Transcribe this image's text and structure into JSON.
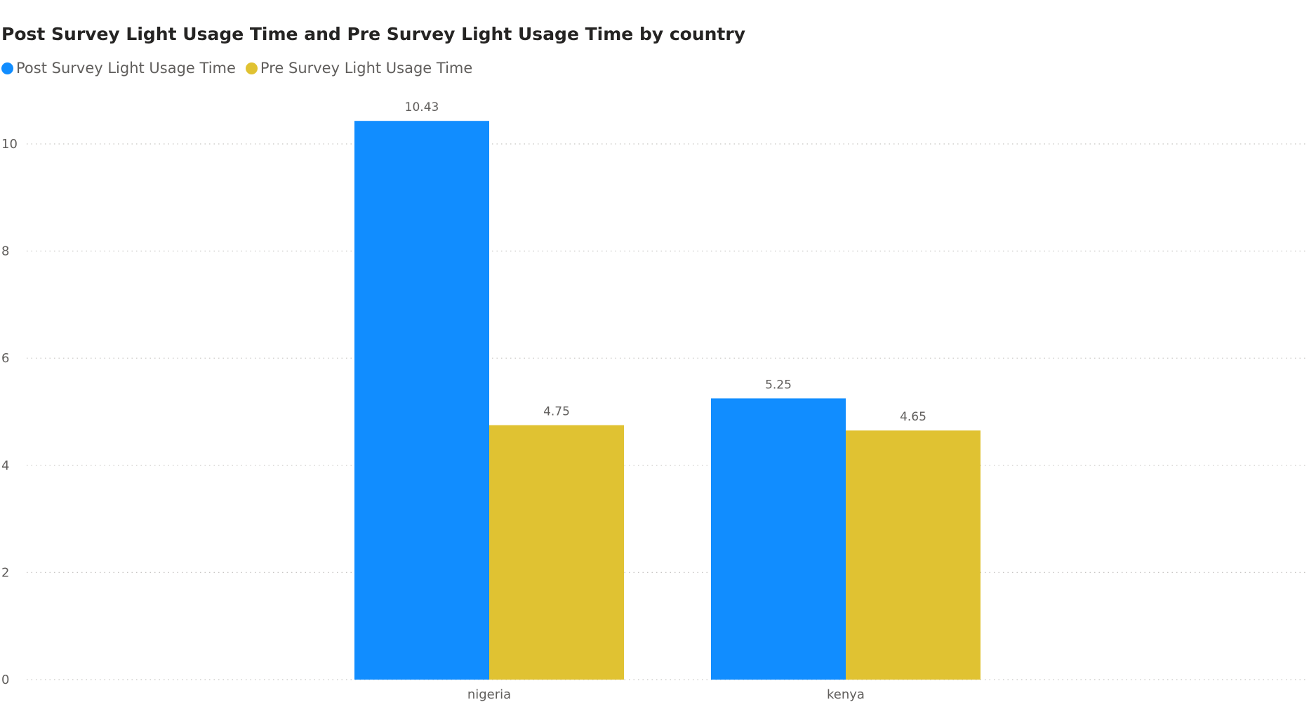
{
  "chart_data": {
    "type": "bar",
    "title": "Post Survey Light Usage Time and Pre Survey Light Usage Time by country",
    "xlabel": "",
    "ylabel": "",
    "categories": [
      "nigeria",
      "kenya"
    ],
    "series": [
      {
        "name": "Post Survey Light Usage Time",
        "values": [
          10.43,
          5.25
        ],
        "labels": [
          "10.43",
          "5.25"
        ],
        "color": "#118DFF"
      },
      {
        "name": "Pre Survey Light Usage Time",
        "values": [
          4.75,
          4.65
        ],
        "labels": [
          "4.75",
          "4.65"
        ],
        "color": "#E0C232"
      }
    ],
    "ylim": [
      0,
      10.9
    ],
    "yticks": [
      "0",
      "2",
      "4",
      "6",
      "8",
      "10"
    ],
    "grid": true,
    "legend_position": "top-left"
  }
}
